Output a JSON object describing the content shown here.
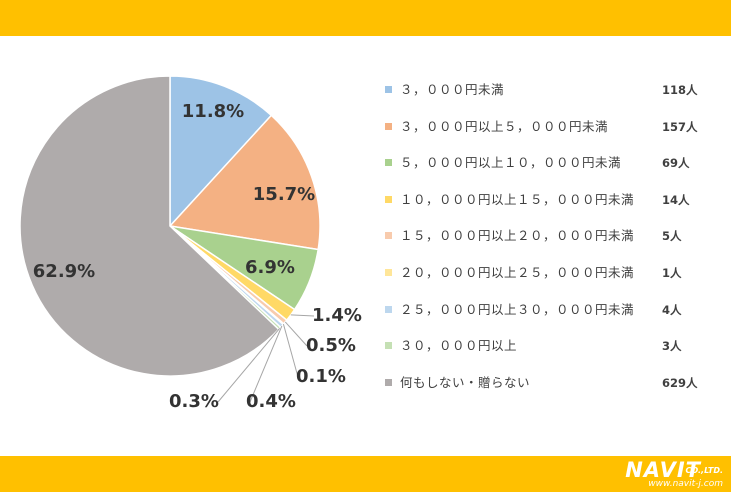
{
  "chart_data": {
    "type": "pie",
    "slices": [
      {
        "label": "３，０００円未満",
        "count": "118人",
        "percent": 11.8,
        "percent_label": "11.8%",
        "color": "#9DC3E6"
      },
      {
        "label": "３，０００円以上５，０００円未満",
        "count": "157人",
        "percent": 15.7,
        "percent_label": "15.7%",
        "color": "#F4B183"
      },
      {
        "label": "５，０００円以上１０，０００円未満",
        "count": "69人",
        "percent": 6.9,
        "percent_label": "6.9%",
        "color": "#A9D18E"
      },
      {
        "label": "１０，０００円以上１５，０００円未満",
        "count": "14人",
        "percent": 1.4,
        "percent_label": "1.4%",
        "color": "#FFD966"
      },
      {
        "label": "１５，０００円以上２０，０００円未満",
        "count": "5人",
        "percent": 0.5,
        "percent_label": "0.5%",
        "color": "#F8CBAD"
      },
      {
        "label": "２０，０００円以上２５，０００円未満",
        "count": "1人",
        "percent": 0.1,
        "percent_label": "0.1%",
        "color": "#FFE699"
      },
      {
        "label": "２５，０００円以上３０，０００円未満",
        "count": "4人",
        "percent": 0.4,
        "percent_label": "0.4%",
        "color": "#BDD7EE"
      },
      {
        "label": "３０，０００円以上",
        "count": "3人",
        "percent": 0.3,
        "percent_label": "0.3%",
        "color": "#C5E0B4"
      },
      {
        "label": "何もしない・贈らない",
        "count": "629人",
        "percent": 62.9,
        "percent_label": "62.9%",
        "color": "#AFABAB"
      }
    ],
    "legend_position": "right"
  },
  "colors": {
    "band": "#FFC000",
    "text": "#404040"
  },
  "logo": {
    "main": "NAVIT",
    "sub": "CO.,LTD.",
    "url": "www.navit-j.com"
  }
}
